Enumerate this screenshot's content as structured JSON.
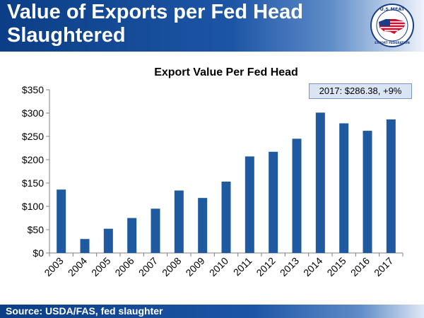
{
  "header": {
    "title": "Value of Exports per Fed Head Slaughtered",
    "logo_top_text": "U.S.MEAT",
    "logo_bottom_text": "EXPORT FEDERATION"
  },
  "footer": {
    "source": "Source: USDA/FAS, fed slaughter"
  },
  "colors": {
    "bar": "#1f5aa0",
    "header": "#0b3e86",
    "annotation_bg": "#dbe4f3"
  },
  "chart_data": {
    "type": "bar",
    "title": "Export Value Per Fed Head",
    "xlabel": "",
    "ylabel": "",
    "ylim": [
      0,
      350
    ],
    "yticks": [
      "$0",
      "$50",
      "$100",
      "$150",
      "$200",
      "$250",
      "$300",
      "$350"
    ],
    "ytick_values": [
      0,
      50,
      100,
      150,
      200,
      250,
      300,
      350
    ],
    "categories": [
      "2003",
      "2004",
      "2005",
      "2006",
      "2007",
      "2008",
      "2009",
      "2010",
      "2011",
      "2012",
      "2013",
      "2014",
      "2015",
      "2016",
      "2017"
    ],
    "values": [
      136,
      30,
      52,
      75,
      95,
      134,
      118,
      153,
      207,
      217,
      245,
      301,
      278,
      262,
      286.38
    ],
    "annotation": "2017: $286.38, +9%",
    "grid": false
  }
}
